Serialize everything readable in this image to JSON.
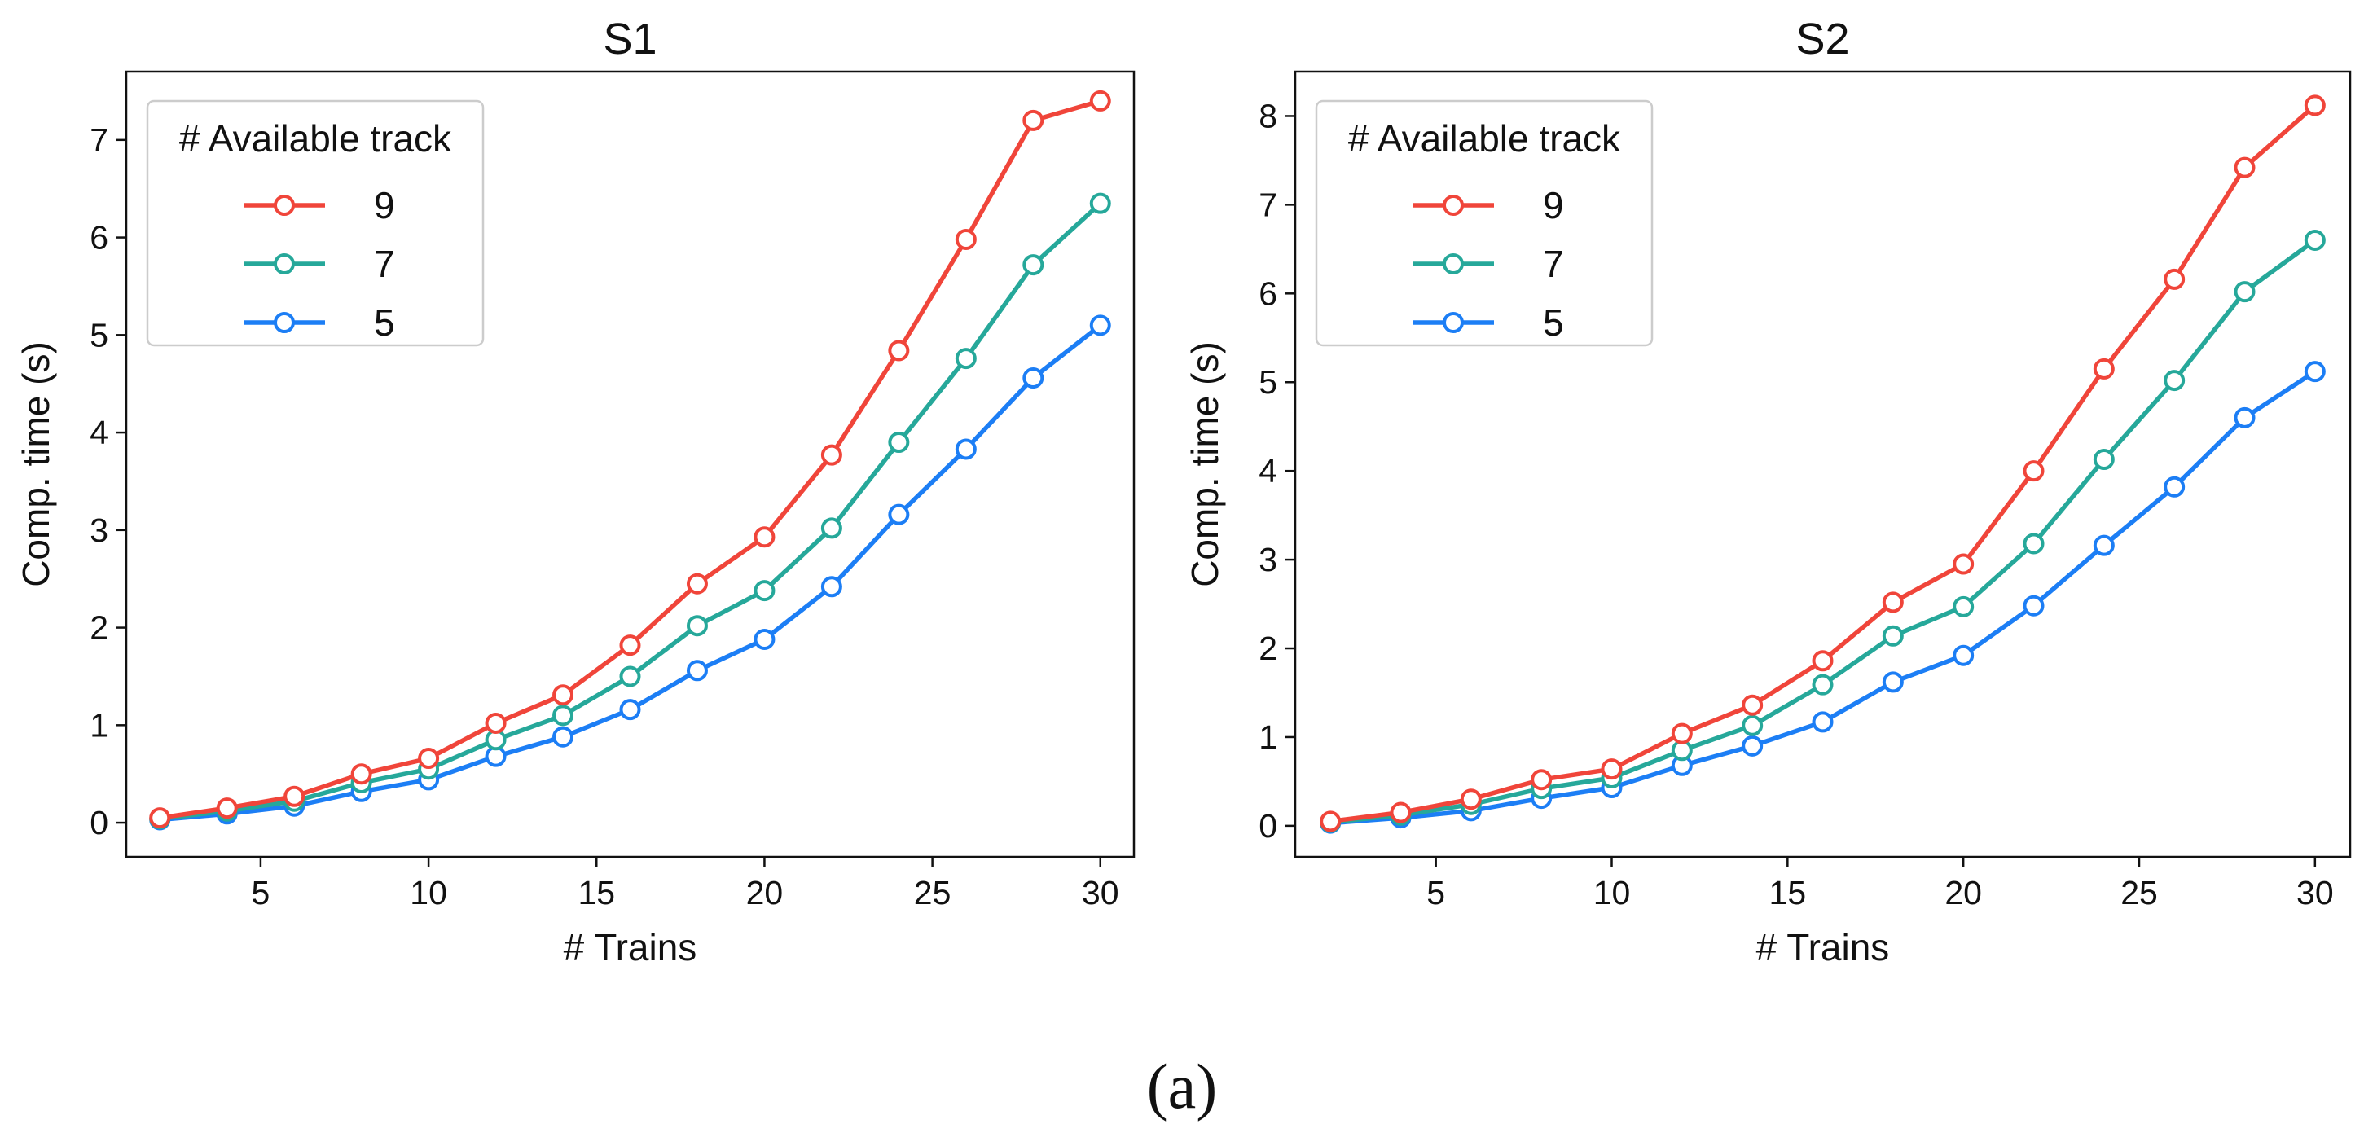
{
  "caption": "(a)",
  "chart_data": [
    {
      "type": "line",
      "title": "S1",
      "xlabel": "# Trains",
      "ylabel": "Comp. time (s)",
      "xlim": [
        1,
        31
      ],
      "ylim": [
        -0.35,
        7.7
      ],
      "xticks": [
        5,
        10,
        15,
        20,
        25,
        30
      ],
      "xtick_labels": [
        "5",
        "10",
        "15",
        "20",
        "25",
        "30"
      ],
      "yticks": [
        0,
        1,
        2,
        3,
        4,
        5,
        6,
        7
      ],
      "ytick_labels": [
        "0",
        "1",
        "2",
        "3",
        "4",
        "5",
        "6",
        "7"
      ],
      "legend_title": "# Available track",
      "legend_position": "top-left",
      "x": [
        2,
        4,
        6,
        8,
        10,
        12,
        14,
        16,
        18,
        20,
        22,
        24,
        26,
        28,
        30
      ],
      "series": [
        {
          "name": "9",
          "color": "#f0453a",
          "values": [
            0.05,
            0.15,
            0.27,
            0.5,
            0.66,
            1.02,
            1.31,
            1.82,
            2.45,
            2.93,
            3.77,
            4.84,
            5.98,
            7.2,
            7.4
          ]
        },
        {
          "name": "7",
          "color": "#26a89a",
          "values": [
            0.04,
            0.12,
            0.22,
            0.41,
            0.55,
            0.85,
            1.1,
            1.5,
            2.02,
            2.38,
            3.02,
            3.9,
            4.76,
            5.72,
            6.35
          ]
        },
        {
          "name": "5",
          "color": "#1c7ef5",
          "values": [
            0.03,
            0.09,
            0.17,
            0.32,
            0.44,
            0.68,
            0.88,
            1.16,
            1.56,
            1.88,
            2.42,
            3.16,
            3.83,
            4.56,
            5.1
          ]
        }
      ]
    },
    {
      "type": "line",
      "title": "S2",
      "xlabel": "# Trains",
      "ylabel": "Comp. time (s)",
      "xlim": [
        1,
        31
      ],
      "ylim": [
        -0.35,
        8.5
      ],
      "xticks": [
        5,
        10,
        15,
        20,
        25,
        30
      ],
      "xtick_labels": [
        "5",
        "10",
        "15",
        "20",
        "25",
        "30"
      ],
      "yticks": [
        0,
        1,
        2,
        3,
        4,
        5,
        6,
        7,
        8
      ],
      "ytick_labels": [
        "0",
        "1",
        "2",
        "3",
        "4",
        "5",
        "6",
        "7",
        "8"
      ],
      "legend_title": "# Available track",
      "legend_position": "top-left",
      "x": [
        2,
        4,
        6,
        8,
        10,
        12,
        14,
        16,
        18,
        20,
        22,
        24,
        26,
        28,
        30
      ],
      "series": [
        {
          "name": "9",
          "color": "#f0453a",
          "values": [
            0.05,
            0.15,
            0.3,
            0.52,
            0.64,
            1.04,
            1.36,
            1.86,
            2.52,
            2.95,
            4.0,
            5.15,
            6.16,
            7.42,
            8.12
          ]
        },
        {
          "name": "7",
          "color": "#26a89a",
          "values": [
            0.04,
            0.12,
            0.24,
            0.42,
            0.54,
            0.85,
            1.13,
            1.59,
            2.14,
            2.47,
            3.18,
            4.13,
            5.02,
            6.02,
            6.6
          ]
        },
        {
          "name": "5",
          "color": "#1c7ef5",
          "values": [
            0.03,
            0.09,
            0.17,
            0.31,
            0.43,
            0.68,
            0.9,
            1.17,
            1.62,
            1.92,
            2.48,
            3.16,
            3.82,
            4.6,
            5.12
          ]
        }
      ]
    }
  ]
}
